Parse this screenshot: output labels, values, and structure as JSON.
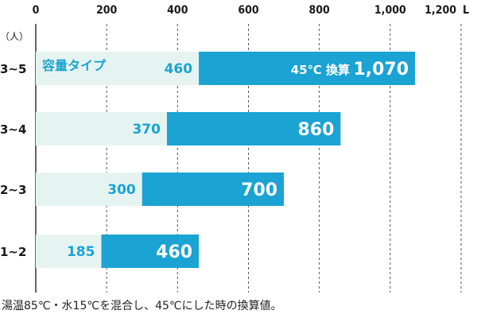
{
  "chart_data": {
    "type": "bar",
    "orientation": "horizontal",
    "xlim": [
      0,
      1200
    ],
    "x_ticks": [
      "0",
      "200",
      "400",
      "600",
      "800",
      "1,000",
      "1,200"
    ],
    "x_unit": "L",
    "y_unit": "（人）",
    "grid": true,
    "categories": [
      "3~5",
      "3~4",
      "2~3",
      "1~2"
    ],
    "series": [
      {
        "name": "容量タイプ",
        "values": [
          460,
          370,
          300,
          185
        ],
        "labels": [
          "460",
          "370",
          "300",
          "185"
        ]
      },
      {
        "name": "45℃換算",
        "values": [
          1070,
          860,
          700,
          460
        ],
        "labels": [
          "1,070",
          "860",
          "700",
          "460"
        ]
      }
    ],
    "annotations": {
      "capacity_label": "容量タイプ",
      "conversion_label": "45℃ 換算"
    },
    "colors": {
      "capacity": "#e6f4f1",
      "converted": "#1aa3d3",
      "inner_text": "#1aa3d3",
      "outer_text": "#ffffff",
      "axis": "#333333",
      "grid": "#555555"
    },
    "note": "湯温85℃・水15℃を混合し、45℃にした時の換算値。"
  }
}
